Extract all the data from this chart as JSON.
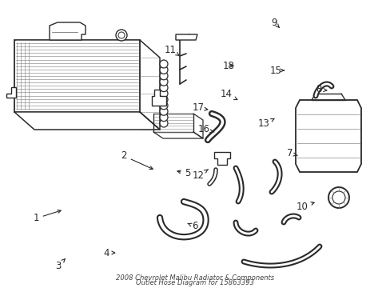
{
  "title": "2008 Chevrolet Malibu Radiator & Components",
  "subtitle": "Outlet Hose Diagram for 15863393",
  "background_color": "#ffffff",
  "fig_width": 4.89,
  "fig_height": 3.6,
  "dpi": 100,
  "gray": "#2a2a2a",
  "lgray": "#888888",
  "border_color": "#bbbbbb"
}
